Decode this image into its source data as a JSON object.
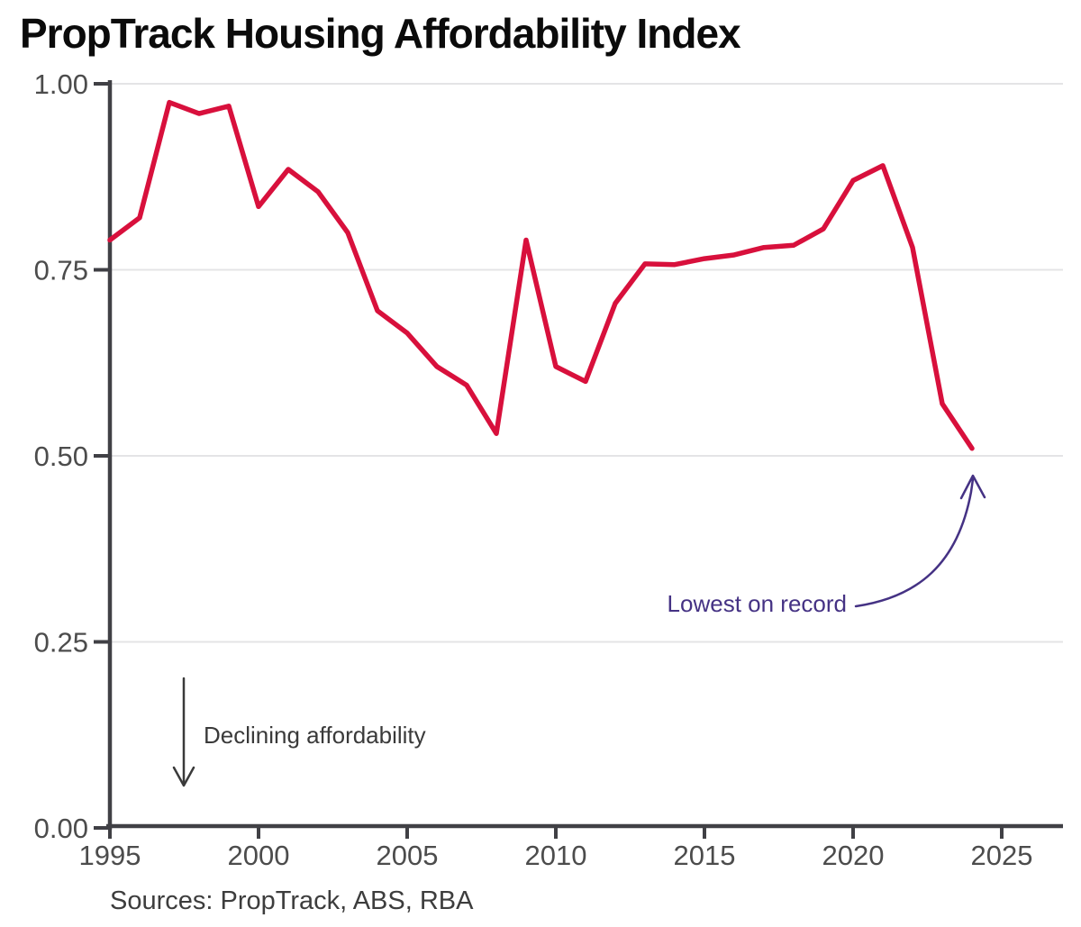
{
  "title": "PropTrack Housing Affordability Index",
  "source": "Sources: PropTrack, ABS, RBA",
  "annotations": {
    "lowest": "Lowest on record",
    "declining": "Declining affordability"
  },
  "colors": {
    "line": "#d8103c",
    "axis": "#404045",
    "grid": "#e4e4e6",
    "tick_label": "#4c4c4c",
    "annotation_purple": "#453284",
    "annotation_gray": "#3a3a3a",
    "title": "#0b0b0b"
  },
  "chart_data": {
    "type": "line",
    "title": "PropTrack Housing Affordability Index",
    "xlabel": "",
    "ylabel": "",
    "legend": false,
    "grid": "horizontal",
    "xlim": [
      1995,
      2027
    ],
    "ylim": [
      0.0,
      1.0
    ],
    "xticks": [
      1995,
      2000,
      2005,
      2010,
      2015,
      2020,
      2025
    ],
    "xtick_labels": [
      "1995",
      "2000",
      "2005",
      "2010",
      "2015",
      "2020",
      "2025"
    ],
    "yticks": [
      0.0,
      0.25,
      0.5,
      0.75,
      1.0
    ],
    "ytick_labels": [
      "0.00",
      "0.25",
      "0.50",
      "0.75",
      "1.00"
    ],
    "series": [
      {
        "name": "Housing affordability index",
        "x": [
          1995,
          1996,
          1997,
          1998,
          1999,
          2000,
          2001,
          2002,
          2003,
          2004,
          2005,
          2006,
          2007,
          2008,
          2009,
          2010,
          2011,
          2012,
          2013,
          2014,
          2015,
          2016,
          2017,
          2018,
          2019,
          2020,
          2021,
          2022,
          2023,
          2024
        ],
        "values": [
          0.79,
          0.82,
          0.975,
          0.96,
          0.97,
          0.835,
          0.885,
          0.855,
          0.8,
          0.695,
          0.665,
          0.62,
          0.595,
          0.53,
          0.79,
          0.62,
          0.6,
          0.705,
          0.758,
          0.757,
          0.765,
          0.77,
          0.78,
          0.783,
          0.805,
          0.87,
          0.89,
          0.78,
          0.57,
          0.51
        ]
      }
    ],
    "annotations": [
      {
        "text": "Lowest on record",
        "target": "last point (2024, 0.51)"
      },
      {
        "text": "Declining affordability",
        "target": "downward direction of y-axis"
      }
    ]
  }
}
